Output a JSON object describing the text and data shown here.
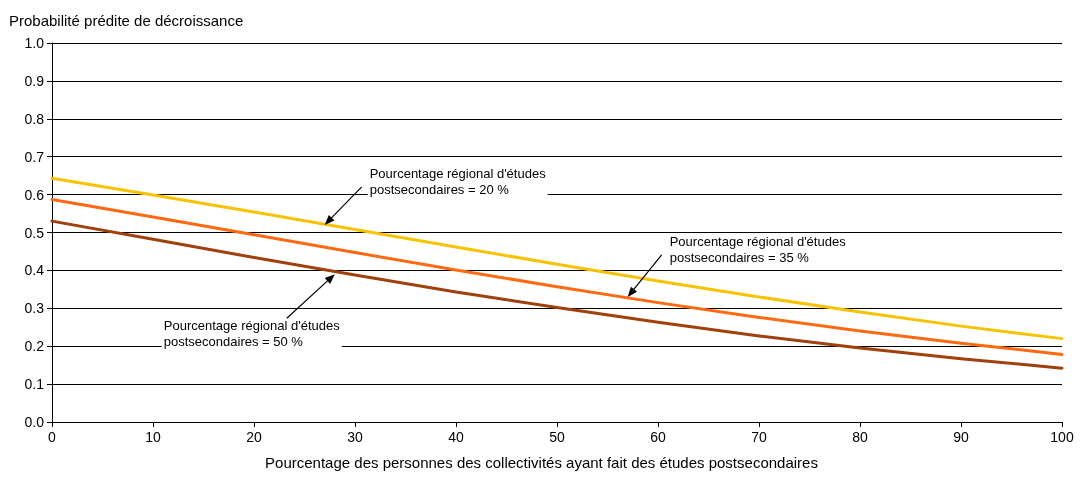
{
  "chart_data": {
    "type": "line",
    "ylabel": "Probabilité prédite de décroissance",
    "xlabel": "Pourcentage des personnes des collectivités ayant fait des études postsecondaires",
    "x": [
      0,
      10,
      20,
      30,
      40,
      50,
      60,
      70,
      80,
      90,
      100
    ],
    "series": [
      {
        "color": "#f7c200",
        "values": [
          0.643,
          0.599,
          0.554,
          0.508,
          0.462,
          0.416,
          0.372,
          0.33,
          0.29,
          0.253,
          0.22
        ]
      },
      {
        "color": "#ff6a10",
        "values": [
          0.587,
          0.541,
          0.494,
          0.447,
          0.401,
          0.357,
          0.315,
          0.276,
          0.24,
          0.208,
          0.178
        ]
      },
      {
        "color": "#a0400c",
        "values": [
          0.53,
          0.482,
          0.434,
          0.388,
          0.343,
          0.302,
          0.263,
          0.227,
          0.195,
          0.167,
          0.142
        ]
      }
    ],
    "xlim": [
      0,
      100
    ],
    "xticks": [
      0,
      10,
      20,
      30,
      40,
      50,
      60,
      70,
      80,
      90,
      100
    ],
    "ylim": [
      0,
      1
    ],
    "yticks": [
      {
        "value": 0,
        "label": "0.0"
      },
      0.1,
      0.2,
      0.3,
      0.4,
      0.5,
      0.6,
      0.7,
      0.8,
      0.9,
      {
        "value": 1,
        "label": "1.0"
      }
    ],
    "grid": "y",
    "marker": "none",
    "line_style": "solid",
    "annotations": [
      {
        "text": "Pourcentage régional d'études\npostsecondaires = 20 %",
        "x": 27,
        "y": 0.52
      },
      {
        "text": "Pourcentage régional d'études\npostsecondaires = 35 %",
        "x": 57,
        "y": 0.33
      },
      {
        "text": "Pourcentage régional d'études\npostsecondaires = 50 %",
        "x": 28,
        "y": 0.39
      }
    ]
  }
}
